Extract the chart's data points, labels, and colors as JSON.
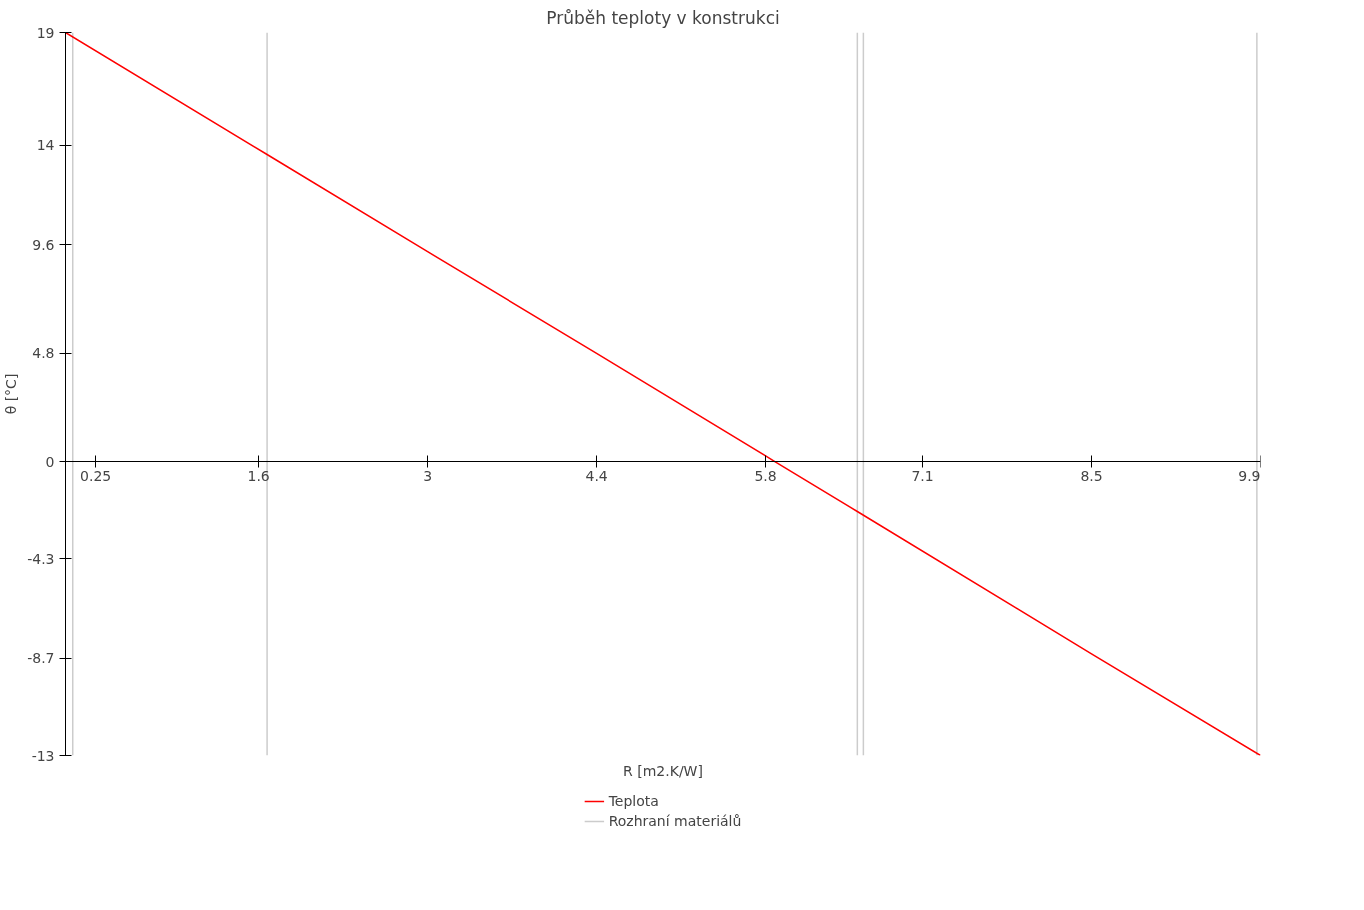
{
  "chart_data": {
    "type": "line",
    "title": "Průběh teploty v konstrukci",
    "xlabel": "R [m2.K/W]",
    "ylabel": "θ [°C]",
    "x": [
      0,
      1.67,
      3,
      4.4,
      5.88,
      6.56,
      8.5,
      9.9
    ],
    "series": [
      {
        "name": "Teplota",
        "color": "#ff0000",
        "values": [
          19,
          13.6,
          9.3,
          4.8,
          0,
          -2.2,
          -8.5,
          -13
        ]
      }
    ],
    "xlim": [
      0,
      9.9
    ],
    "ylim": [
      -13,
      19
    ],
    "xticks": [
      0.25,
      1.6,
      3,
      4.4,
      5.8,
      7.1,
      8.5,
      9.9
    ],
    "yticks": [
      -13,
      -8.7,
      -4.3,
      0,
      4.8,
      9.6,
      14,
      19
    ],
    "ref_lines": [
      {
        "axis": "x",
        "value": 0.06,
        "label": "Rozhraní materiálů",
        "color": "#cccccc"
      },
      {
        "axis": "x",
        "value": 1.67,
        "color": "#cccccc"
      },
      {
        "axis": "x",
        "value": 6.56,
        "color": "#cccccc"
      },
      {
        "axis": "x",
        "value": 6.61,
        "color": "#cccccc"
      },
      {
        "axis": "x",
        "value": 9.87,
        "color": "#cccccc"
      }
    ],
    "grid": false,
    "legend": "bottom",
    "marker": "none",
    "line_style": "solid"
  }
}
